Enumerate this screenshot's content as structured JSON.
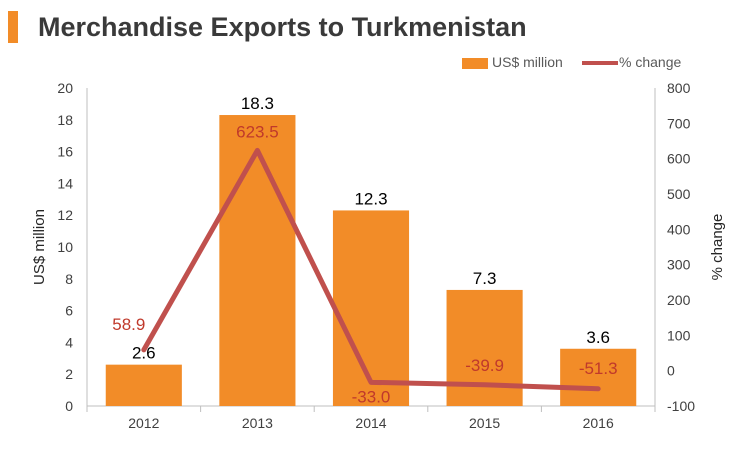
{
  "header": {
    "title": "Merchandise Exports to Turkmenistan"
  },
  "legend": {
    "bar_label": "US$ million",
    "line_label": "% change"
  },
  "colors": {
    "bar": "#F28C28",
    "line": "#C0504D",
    "line_label": "#C0392B",
    "title_accent": "#F28C28"
  },
  "chart_data": {
    "type": "bar",
    "title": "Merchandise Exports to Turkmenistan",
    "categories": [
      "2012",
      "2013",
      "2014",
      "2015",
      "2016"
    ],
    "series": [
      {
        "name": "US$ million",
        "type": "bar",
        "axis": "left",
        "values": [
          2.6,
          18.3,
          12.3,
          7.3,
          3.6
        ]
      },
      {
        "name": "% change",
        "type": "line",
        "axis": "right",
        "values": [
          58.9,
          623.5,
          -33.0,
          -39.9,
          -51.3
        ]
      }
    ],
    "ylabel": "US$ million",
    "y2label": "% change",
    "ylim": [
      0,
      20
    ],
    "y2lim": [
      -100,
      800
    ],
    "yticks": [
      "0",
      "2",
      "4",
      "6",
      "8",
      "10",
      "12",
      "14",
      "16",
      "18",
      "20"
    ],
    "y2ticks": [
      "-100",
      "0",
      "100",
      "200",
      "300",
      "400",
      "500",
      "600",
      "700",
      "800"
    ],
    "bar_value_labels": [
      "2.6",
      "18.3",
      "12.3",
      "7.3",
      "3.6"
    ],
    "line_value_labels": [
      "58.9",
      "623.5",
      "-33.0",
      "-39.9",
      "-51.3"
    ],
    "grid": false,
    "legend_position": "top-right"
  }
}
